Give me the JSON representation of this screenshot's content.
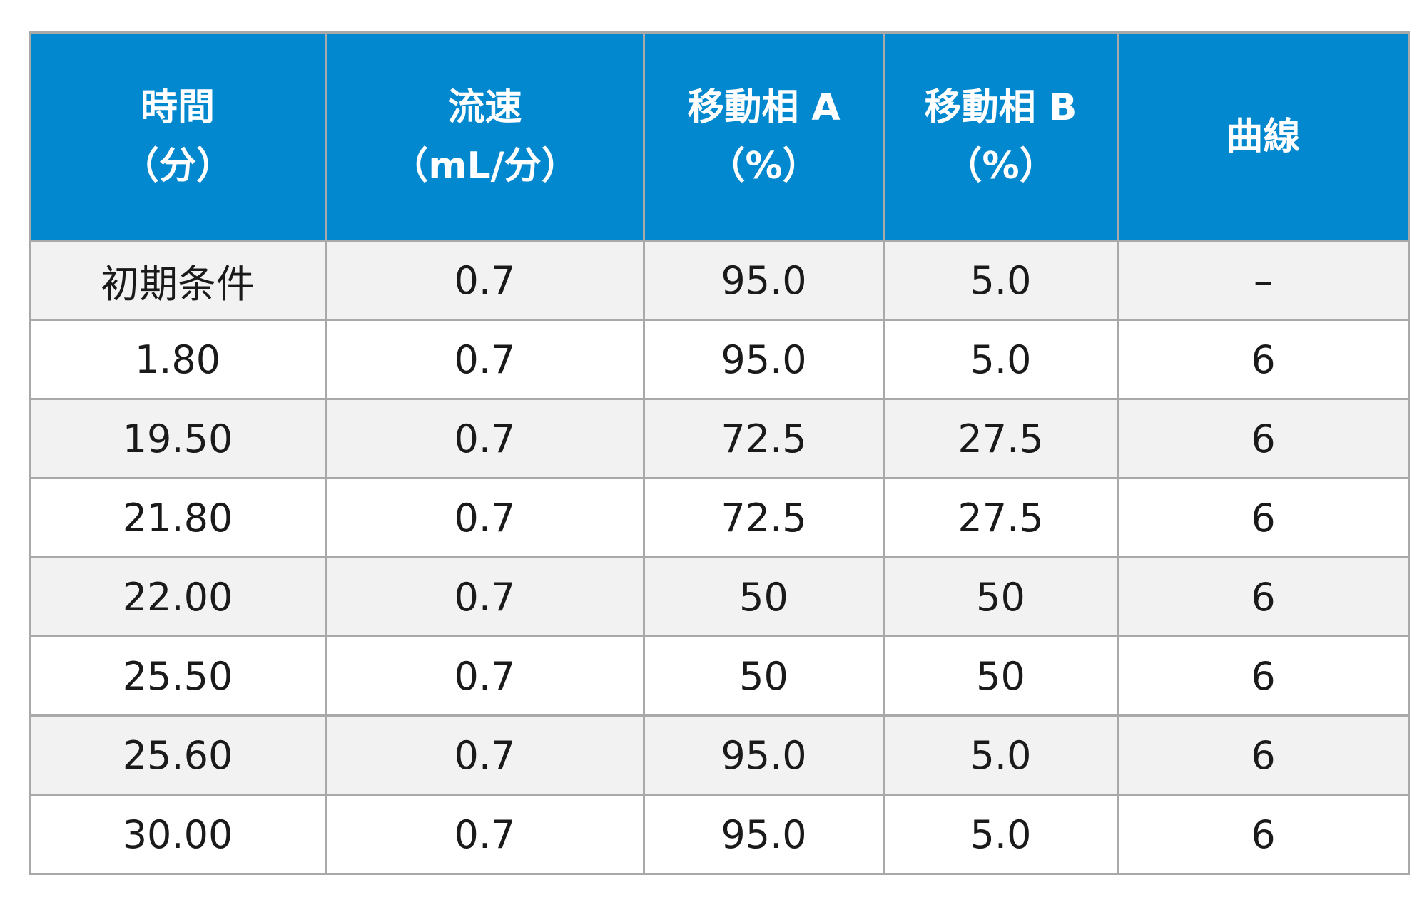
{
  "table": {
    "headers": [
      {
        "line1": "時間",
        "line2": "（分）"
      },
      {
        "line1": "流速",
        "line2": "（mL/分）"
      },
      {
        "line1": "移動相 A",
        "line2": "（%）"
      },
      {
        "line1": "移動相 B",
        "line2": "（%）"
      },
      {
        "line1": "曲線",
        "line2": ""
      }
    ],
    "rows": [
      [
        "初期条件",
        "0.7",
        "95.0",
        "5.0",
        "–"
      ],
      [
        "1.80",
        "0.7",
        "95.0",
        "5.0",
        "6"
      ],
      [
        "19.50",
        "0.7",
        "72.5",
        "27.5",
        "6"
      ],
      [
        "21.80",
        "0.7",
        "72.5",
        "27.5",
        "6"
      ],
      [
        "22.00",
        "0.7",
        "50",
        "50",
        "6"
      ],
      [
        "25.50",
        "0.7",
        "50",
        "50",
        "6"
      ],
      [
        "25.60",
        "0.7",
        "95.0",
        "5.0",
        "6"
      ],
      [
        "30.00",
        "0.7",
        "95.0",
        "5.0",
        "6"
      ]
    ]
  },
  "colors": {
    "header_bg": "#0288cf",
    "header_text": "#ffffff",
    "row_alt_bg": "#f2f2f3",
    "border": "#a9a9a9"
  }
}
